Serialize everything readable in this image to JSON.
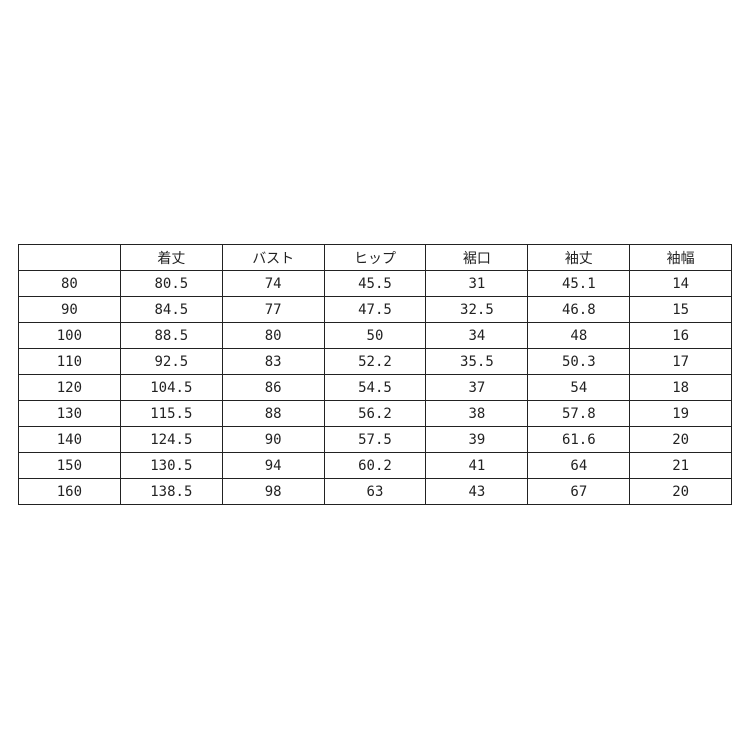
{
  "table": {
    "headers": [
      "",
      "着丈",
      "バスト",
      "ヒップ",
      "裾口",
      "袖丈",
      "袖幅"
    ],
    "rows": [
      [
        "80",
        "80.5",
        "74",
        "45.5",
        "31",
        "45.1",
        "14"
      ],
      [
        "90",
        "84.5",
        "77",
        "47.5",
        "32.5",
        "46.8",
        "15"
      ],
      [
        "100",
        "88.5",
        "80",
        "50",
        "34",
        "48",
        "16"
      ],
      [
        "110",
        "92.5",
        "83",
        "52.2",
        "35.5",
        "50.3",
        "17"
      ],
      [
        "120",
        "104.5",
        "86",
        "54.5",
        "37",
        "54",
        "18"
      ],
      [
        "130",
        "115.5",
        "88",
        "56.2",
        "38",
        "57.8",
        "19"
      ],
      [
        "140",
        "124.5",
        "90",
        "57.5",
        "39",
        "61.6",
        "20"
      ],
      [
        "150",
        "130.5",
        "94",
        "60.2",
        "41",
        "64",
        "21"
      ],
      [
        "160",
        "138.5",
        "98",
        "63",
        "43",
        "67",
        "20"
      ]
    ]
  }
}
